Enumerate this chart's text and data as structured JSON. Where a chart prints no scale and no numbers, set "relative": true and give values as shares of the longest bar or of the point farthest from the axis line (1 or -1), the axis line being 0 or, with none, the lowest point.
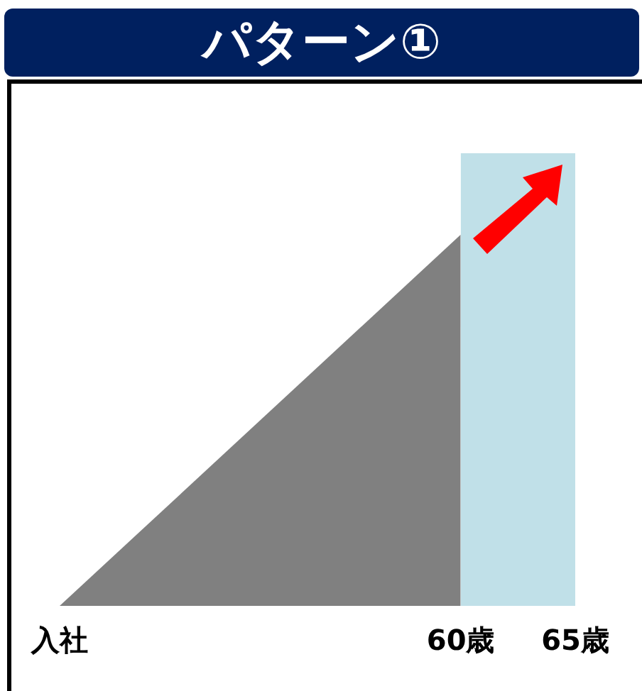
{
  "chart_data": {
    "type": "area",
    "title": "パターン①",
    "relative": true,
    "legend": false,
    "grid": false,
    "categories": [
      "入社",
      null,
      null,
      null,
      null,
      null,
      null,
      "60歳",
      null,
      "65歳"
    ],
    "series": [
      {
        "color": "#808080",
        "values": [
          0,
          null,
          null,
          null,
          null,
          null,
          null,
          0.82,
          null,
          null
        ]
      },
      {
        "color": "#c0e0e8",
        "values": [
          null,
          null,
          null,
          null,
          null,
          null,
          null,
          1,
          1,
          1
        ]
      }
    ]
  }
}
